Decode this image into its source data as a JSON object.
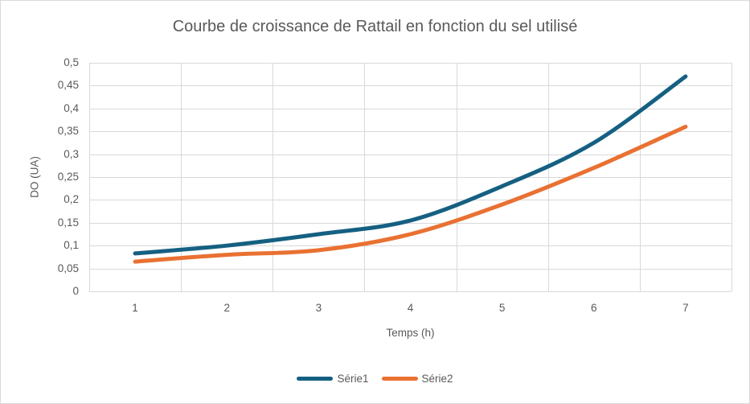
{
  "chart": {
    "background": "#FFFFFF",
    "border_color": "#D9D9D9"
  },
  "chart_data": {
    "type": "line",
    "title": "Courbe de croissance de Rattail en fonction du sel utilisé",
    "xlabel": "Temps (h)",
    "ylabel": "DO (UA)",
    "categories": [
      "1",
      "2",
      "3",
      "4",
      "5",
      "6",
      "7"
    ],
    "series": [
      {
        "name": "Série1",
        "color": "#156082",
        "values": [
          0.083,
          0.1,
          0.125,
          0.155,
          0.23,
          0.325,
          0.47
        ]
      },
      {
        "name": "Série2",
        "color": "#E97132",
        "values": [
          0.065,
          0.08,
          0.09,
          0.125,
          0.19,
          0.27,
          0.36
        ]
      }
    ],
    "ylim": [
      0,
      0.5
    ],
    "ytick_step": 0.05,
    "ytick_labels": [
      "0",
      "0,05",
      "0,1",
      "0,15",
      "0,2",
      "0,25",
      "0,3",
      "0,35",
      "0,4",
      "0,45",
      "0,5"
    ],
    "grid": true,
    "smooth": true,
    "legend_position": "bottom",
    "text_color": "#595959",
    "grid_color": "#D9D9D9",
    "line_width": 5
  }
}
